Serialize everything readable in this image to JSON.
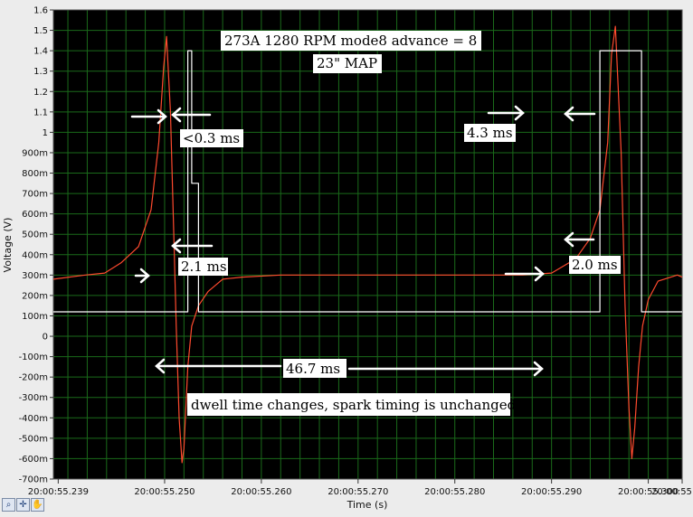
{
  "chart_data": {
    "type": "line",
    "xlabel": "Time (s)",
    "ylabel": "Voltage (V)",
    "xlim": [
      55.2385,
      55.3035
    ],
    "ylim": [
      -0.7,
      1.6
    ],
    "grid": true,
    "x_ticks": [
      {
        "value": 55.239,
        "label": "20:00:55.239"
      },
      {
        "value": 55.25,
        "label": "20:00:55.250"
      },
      {
        "value": 55.26,
        "label": "20:00:55.260"
      },
      {
        "value": 55.27,
        "label": "20:00:55.270"
      },
      {
        "value": 55.28,
        "label": "20:00:55.280"
      },
      {
        "value": 55.29,
        "label": "20:00:55.290"
      },
      {
        "value": 55.3,
        "label": "20:00:55.300"
      },
      {
        "value": 55.3035,
        "label": "20:00:55"
      }
    ],
    "y_ticks": [
      {
        "value": 1.6,
        "label": "1.6"
      },
      {
        "value": 1.5,
        "label": "1.5"
      },
      {
        "value": 1.4,
        "label": "1.4"
      },
      {
        "value": 1.3,
        "label": "1.3"
      },
      {
        "value": 1.2,
        "label": "1.2"
      },
      {
        "value": 1.1,
        "label": "1.1"
      },
      {
        "value": 1.0,
        "label": "1"
      },
      {
        "value": 0.9,
        "label": "900m"
      },
      {
        "value": 0.8,
        "label": "800m"
      },
      {
        "value": 0.7,
        "label": "700m"
      },
      {
        "value": 0.6,
        "label": "600m"
      },
      {
        "value": 0.5,
        "label": "500m"
      },
      {
        "value": 0.4,
        "label": "400m"
      },
      {
        "value": 0.3,
        "label": "300m"
      },
      {
        "value": 0.2,
        "label": "200m"
      },
      {
        "value": 0.1,
        "label": "100m"
      },
      {
        "value": 0.0,
        "label": "0"
      },
      {
        "value": -0.1,
        "label": "-100m"
      },
      {
        "value": -0.2,
        "label": "-200m"
      },
      {
        "value": -0.3,
        "label": "-300m"
      },
      {
        "value": -0.4,
        "label": "-400m"
      },
      {
        "value": -0.5,
        "label": "-500m"
      },
      {
        "value": -0.6,
        "label": "-600m"
      },
      {
        "value": -0.7,
        "label": "-700m"
      }
    ],
    "series": [
      {
        "color": "#ff4a2e",
        "x": [
          55.2385,
          55.2418,
          55.2438,
          55.2455,
          55.2473,
          55.2486,
          55.2494,
          55.2499,
          55.2502,
          55.2506,
          55.251,
          55.2512,
          55.2515,
          55.2518,
          55.252,
          55.2524,
          55.2528,
          55.2535,
          55.2545,
          55.256,
          55.258,
          55.262,
          55.268,
          55.275,
          55.282,
          55.287,
          55.29,
          55.2925,
          55.294,
          55.295,
          55.2958,
          55.2962,
          55.2966,
          55.2972,
          55.2976,
          55.298,
          55.2983,
          55.2986,
          55.299,
          55.2994,
          55.3,
          55.301,
          55.303,
          55.3035
        ],
        "y": [
          0.28,
          0.3,
          0.31,
          0.36,
          0.44,
          0.62,
          0.95,
          1.32,
          1.47,
          1.1,
          0.4,
          0.05,
          -0.4,
          -0.62,
          -0.55,
          -0.15,
          0.05,
          0.15,
          0.22,
          0.28,
          0.29,
          0.3,
          0.3,
          0.3,
          0.3,
          0.3,
          0.31,
          0.38,
          0.48,
          0.62,
          0.95,
          1.38,
          1.52,
          0.9,
          0.15,
          -0.35,
          -0.6,
          -0.45,
          -0.15,
          0.05,
          0.18,
          0.27,
          0.3,
          0.29
        ]
      },
      {
        "color": "#ffffff",
        "x": [
          55.2385,
          55.2524,
          55.2524,
          55.2528,
          55.2528,
          55.2535,
          55.2535,
          55.295,
          55.295,
          55.2993,
          55.2993,
          55.3035
        ],
        "y": [
          0.12,
          0.12,
          1.4,
          1.4,
          0.75,
          0.75,
          0.12,
          0.12,
          1.4,
          1.4,
          0.12,
          0.12
        ]
      }
    ]
  },
  "annotations": {
    "title_line1": "273A 1280 RPM mode8 advance = 8",
    "title_line2": "23\" MAP",
    "dwell_short": "<0.3 ms",
    "dwell_long": "4.3 ms",
    "delay_left": "2.1 ms",
    "delay_right": "2.0 ms",
    "period": "46.7 ms",
    "conclusion": "dwell time changes, spark timing is unchanged"
  },
  "toolbar": {
    "zoom_icon": "zoom-icon",
    "crosshair_icon": "crosshair-icon",
    "pan_icon": "hand-icon"
  },
  "colors": {
    "plot_bg": "#000000",
    "grid": "#1a6a1a",
    "red_trace": "#ff4a2e",
    "white_trace": "#ffffff"
  }
}
